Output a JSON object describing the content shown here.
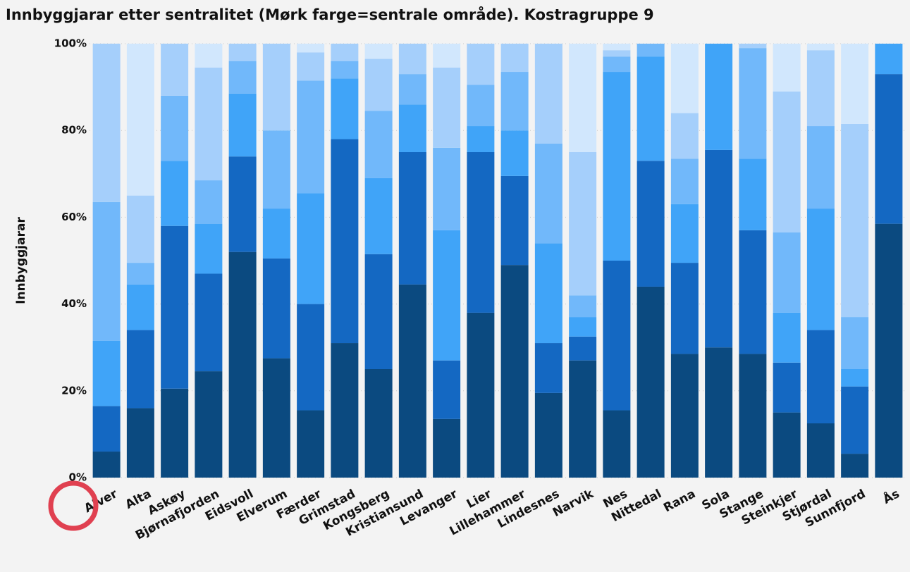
{
  "chart_data": {
    "type": "stacked_bar_100",
    "title": "Innbyggjarar etter sentralitet (Mørk farge=sentrale område). Kostragruppe 9",
    "y_label": "Innbyggjarar",
    "categories": [
      "Alver",
      "Alta",
      "Askøy",
      "Bjørnafjorden",
      "Eidsvoll",
      "Elverum",
      "Færder",
      "Grimstad",
      "Kongsberg",
      "Kristiansund",
      "Levanger",
      "Lier",
      "Lillehammer",
      "Lindesnes",
      "Narvik",
      "Nes",
      "Nittedal",
      "Rana",
      "Sola",
      "Stange",
      "Steinkjer",
      "Stjørdal",
      "Sunnfjord",
      "Ås"
    ],
    "series": [
      {
        "color": "#0b4a80",
        "values": [
          6,
          16,
          20.5,
          24.5,
          52,
          27.5,
          15.5,
          31,
          25,
          44.5,
          13.5,
          38,
          49,
          19.5,
          27,
          15.5,
          44,
          28.5,
          30,
          28.5,
          15,
          12.5,
          5.5,
          58.5
        ]
      },
      {
        "color": "#1468c2",
        "values": [
          10.5,
          18,
          37.5,
          22.5,
          22,
          23,
          24.5,
          47,
          26.5,
          30.5,
          13.5,
          37,
          20.5,
          11.5,
          5.5,
          34.5,
          29,
          21,
          45.5,
          28.5,
          11.5,
          21.5,
          15.5,
          34.5
        ]
      },
      {
        "color": "#40a4f8",
        "values": [
          15,
          10.5,
          15,
          11.5,
          14.5,
          11.5,
          25.5,
          14,
          17.5,
          11,
          30,
          6,
          10.5,
          23,
          4.5,
          43.5,
          24,
          13.5,
          24.5,
          16.5,
          11.5,
          28,
          4,
          7
        ]
      },
      {
        "color": "#71b8fa",
        "values": [
          32,
          5,
          15,
          10,
          7.5,
          18,
          26,
          4,
          15.5,
          7,
          19,
          9.5,
          13.5,
          23,
          5,
          3.5,
          3,
          10.5,
          0,
          25.5,
          18.5,
          19,
          12,
          0
        ]
      },
      {
        "color": "#a5cffb",
        "values": [
          36.5,
          15.5,
          12,
          26,
          4,
          20,
          6.5,
          4,
          12,
          7,
          18.5,
          9.5,
          6.5,
          23,
          33,
          1.5,
          0,
          10.5,
          0,
          1,
          32.5,
          17.5,
          44.5,
          0
        ]
      },
      {
        "color": "#d1e7fd",
        "values": [
          0,
          35,
          0,
          5.5,
          0,
          0,
          2,
          0,
          3.5,
          0,
          5.5,
          0,
          0,
          0,
          25,
          1.5,
          0,
          16,
          0,
          0,
          11,
          1.5,
          18.5,
          0
        ]
      }
    ],
    "ylim": [
      0,
      100
    ],
    "yticks": [
      {
        "value": 0,
        "label": "0%"
      },
      {
        "value": 20,
        "label": "20%"
      },
      {
        "value": 40,
        "label": "40%"
      },
      {
        "value": 60,
        "label": "60%"
      },
      {
        "value": 80,
        "label": "80%"
      },
      {
        "value": 100,
        "label": "100%"
      }
    ],
    "grid": true
  }
}
